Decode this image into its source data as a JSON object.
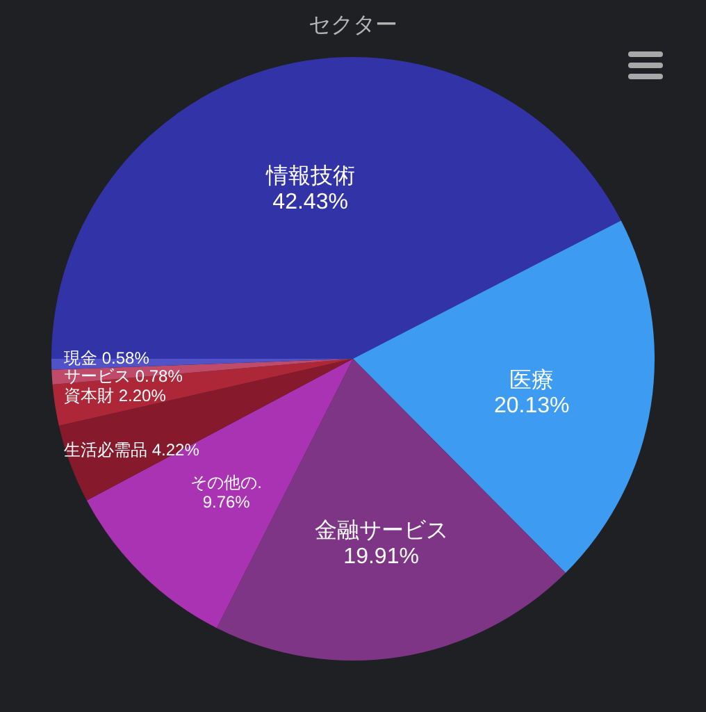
{
  "chart_data": {
    "type": "pie",
    "title": "セクター",
    "categories": [
      "情報技術",
      "医療",
      "金融サービス",
      "その他の.",
      "生活必需品",
      "資本財",
      "サービス",
      "現金"
    ],
    "values": [
      42.43,
      20.13,
      19.91,
      9.76,
      4.22,
      2.2,
      0.78,
      0.58
    ],
    "colors": [
      "#3333a8",
      "#3d9cf2",
      "#7e3585",
      "#aa33b4",
      "#861a2c",
      "#ae2738",
      "#c04a6a",
      "#5252c8"
    ],
    "value_labels": [
      "42.43%",
      "20.13%",
      "19.91%",
      "9.76%",
      "4.22%",
      "2.20%",
      "0.78%",
      "0.58%"
    ],
    "legend": false
  }
}
